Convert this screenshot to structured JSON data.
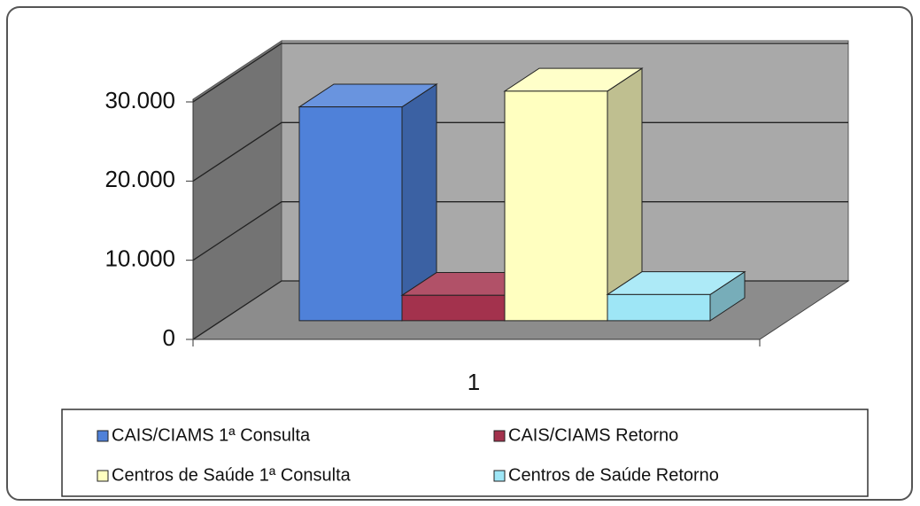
{
  "chart_data": {
    "type": "bar3d",
    "categories": [
      "1"
    ],
    "series": [
      {
        "name": "CAIS/CIAMS 1ª Consulta",
        "color": "#4f81d9",
        "values": [
          27000
        ]
      },
      {
        "name": "CAIS/CIAMS Retorno",
        "color": "#a3324d",
        "values": [
          3200
        ]
      },
      {
        "name": "Centros de Saúde 1ª Consulta",
        "color": "#ffffc0",
        "values": [
          29000
        ]
      },
      {
        "name": "Centros de Saúde Retorno",
        "color": "#9ee6f6",
        "values": [
          3300
        ]
      }
    ],
    "ylim": [
      0,
      30000
    ],
    "yticks": [
      0,
      {
        "value": 10000,
        "label": "10.000"
      },
      {
        "value": 20000,
        "label": "20.000"
      },
      {
        "value": 30000,
        "label": "30.000"
      }
    ],
    "grid": true,
    "legend": "bottom"
  }
}
